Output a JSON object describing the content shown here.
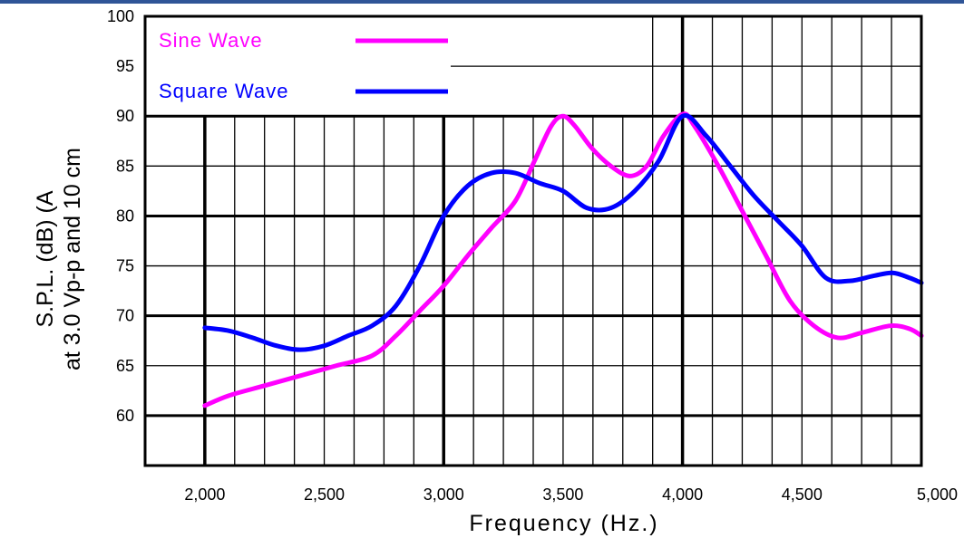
{
  "chart_data": {
    "type": "line",
    "title": "",
    "xlabel": "Frequency  (Hz.)",
    "ylabel_lines": [
      "S.P.L. (dB) (A",
      "at 3.0 Vp-p and 10 cm"
    ],
    "x_ticks": [
      "2,000",
      "2,500",
      "3,000",
      "3,500",
      "4,000",
      "4,500",
      "5,000"
    ],
    "x_tick_values": [
      2000,
      2500,
      3000,
      3500,
      4000,
      4500,
      5000
    ],
    "y_ticks": [
      "60",
      "65",
      "70",
      "75",
      "80",
      "85",
      "90",
      "95",
      "100"
    ],
    "y_tick_values": [
      60,
      65,
      70,
      75,
      80,
      85,
      90,
      95,
      100
    ],
    "xlim": [
      1750,
      5000
    ],
    "ylim": [
      55,
      100
    ],
    "grid": true,
    "legend_position": "top-left",
    "series": [
      {
        "name": "Sine Wave",
        "color": "#ff00ff",
        "points": [
          [
            2000,
            61.0
          ],
          [
            2100,
            62.0
          ],
          [
            2250,
            63.0
          ],
          [
            2400,
            64.0
          ],
          [
            2550,
            65.0
          ],
          [
            2700,
            66.0
          ],
          [
            2800,
            68.0
          ],
          [
            2900,
            70.5
          ],
          [
            3000,
            73.0
          ],
          [
            3100,
            76.0
          ],
          [
            3200,
            78.8
          ],
          [
            3300,
            81.5
          ],
          [
            3380,
            85.5
          ],
          [
            3450,
            89.0
          ],
          [
            3500,
            90.0
          ],
          [
            3550,
            89.0
          ],
          [
            3620,
            86.8
          ],
          [
            3700,
            85.0
          ],
          [
            3780,
            84.0
          ],
          [
            3850,
            85.0
          ],
          [
            3920,
            88.0
          ],
          [
            4000,
            90.2
          ],
          [
            4050,
            89.0
          ],
          [
            4150,
            85.0
          ],
          [
            4250,
            80.5
          ],
          [
            4350,
            76.0
          ],
          [
            4450,
            71.5
          ],
          [
            4550,
            69.0
          ],
          [
            4650,
            67.8
          ],
          [
            4750,
            68.3
          ],
          [
            4870,
            69.0
          ],
          [
            4950,
            68.7
          ],
          [
            5000,
            68.0
          ]
        ]
      },
      {
        "name": "Square Wave",
        "color": "#0000ff",
        "points": [
          [
            2000,
            68.8
          ],
          [
            2100,
            68.5
          ],
          [
            2200,
            67.8
          ],
          [
            2300,
            67.0
          ],
          [
            2400,
            66.6
          ],
          [
            2500,
            67.0
          ],
          [
            2600,
            68.0
          ],
          [
            2700,
            69.0
          ],
          [
            2800,
            71.0
          ],
          [
            2900,
            75.0
          ],
          [
            3000,
            80.0
          ],
          [
            3100,
            83.0
          ],
          [
            3200,
            84.3
          ],
          [
            3300,
            84.3
          ],
          [
            3400,
            83.3
          ],
          [
            3500,
            82.5
          ],
          [
            3600,
            80.8
          ],
          [
            3700,
            80.8
          ],
          [
            3800,
            82.5
          ],
          [
            3900,
            85.5
          ],
          [
            4000,
            90.0
          ],
          [
            4100,
            88.0
          ],
          [
            4200,
            85.0
          ],
          [
            4300,
            82.0
          ],
          [
            4400,
            79.5
          ],
          [
            4500,
            77.0
          ],
          [
            4600,
            73.8
          ],
          [
            4700,
            73.5
          ],
          [
            4800,
            74.0
          ],
          [
            4880,
            74.3
          ],
          [
            4950,
            73.8
          ],
          [
            5000,
            73.3
          ]
        ]
      }
    ]
  }
}
